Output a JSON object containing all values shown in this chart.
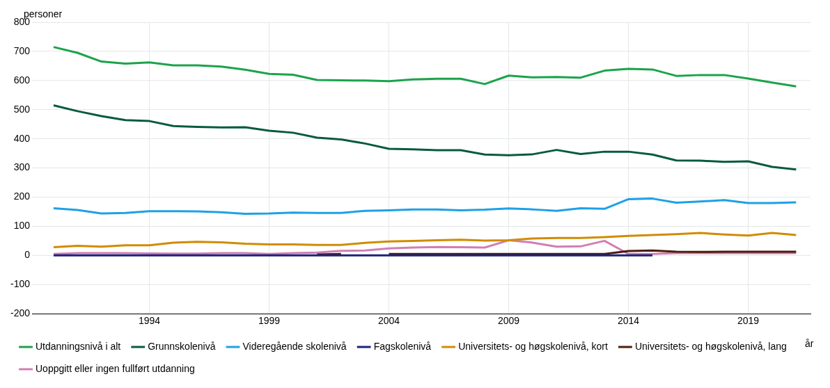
{
  "chart_data": {
    "type": "line",
    "ylabel": "personer",
    "xlabel": "år",
    "x": [
      1990,
      1991,
      1992,
      1993,
      1994,
      1995,
      1996,
      1997,
      1998,
      1999,
      2000,
      2001,
      2002,
      2003,
      2004,
      2005,
      2006,
      2007,
      2008,
      2009,
      2010,
      2011,
      2012,
      2013,
      2014,
      2015,
      2016,
      2017,
      2018,
      2019,
      2020,
      2021
    ],
    "xlim": [
      1989.1,
      2021.6
    ],
    "xticks": [
      1994,
      1999,
      2004,
      2009,
      2014,
      2019
    ],
    "ylim": [
      -200,
      800
    ],
    "yticks": [
      -200,
      -100,
      0,
      100,
      200,
      300,
      400,
      500,
      600,
      700,
      800
    ],
    "grid": true,
    "legend": "bottom",
    "marker": "none",
    "line_style": "solid",
    "series": [
      {
        "name": "Utdanningsnivå i alt",
        "color": "#1ba34b",
        "values": [
          715,
          695,
          665,
          658,
          662,
          652,
          652,
          648,
          637,
          623,
          620,
          602,
          601,
          600,
          598,
          604,
          606,
          606,
          588,
          617,
          611,
          612,
          610,
          634,
          640,
          638,
          616,
          619,
          619,
          607,
          593,
          580
        ]
      },
      {
        "name": "Grunnskolenivå",
        "color": "#075a40",
        "values": [
          515,
          495,
          478,
          464,
          461,
          444,
          441,
          439,
          440,
          428,
          421,
          404,
          398,
          384,
          366,
          364,
          361,
          361,
          346,
          344,
          347,
          362,
          348,
          356,
          356,
          346,
          326,
          325,
          321,
          323,
          304,
          295
        ]
      },
      {
        "name": "Videregående skolenivå",
        "color": "#1ea0e6",
        "values": [
          162,
          156,
          144,
          146,
          152,
          152,
          151,
          148,
          143,
          144,
          147,
          146,
          146,
          153,
          155,
          158,
          158,
          155,
          157,
          161,
          158,
          153,
          162,
          160,
          193,
          195,
          181,
          185,
          190,
          180,
          180,
          182
        ]
      },
      {
        "name": "Fagskolenivå",
        "color": "#1a237e",
        "values": [
          0,
          0,
          0,
          0,
          0,
          0,
          0,
          0,
          0,
          0,
          0,
          0,
          0,
          0,
          0,
          0,
          0,
          0,
          0,
          0,
          0,
          0,
          0,
          0,
          0,
          0,
          null,
          null,
          null,
          null,
          null,
          null
        ]
      },
      {
        "name": "Universitets- og høgskolenivå, kort",
        "color": "#d08c00",
        "values": [
          28,
          33,
          30,
          35,
          35,
          44,
          47,
          45,
          40,
          38,
          38,
          36,
          36,
          43,
          48,
          50,
          52,
          54,
          51,
          52,
          58,
          60,
          60,
          63,
          67,
          70,
          73,
          77,
          72,
          68,
          77,
          70
        ]
      },
      {
        "name": "Universitets- og høgskolenivå, lang",
        "color": "#4a1e0a",
        "values": [
          null,
          null,
          null,
          null,
          null,
          null,
          null,
          null,
          null,
          null,
          null,
          3,
          5,
          null,
          5,
          5,
          5,
          5,
          5,
          5,
          5,
          5,
          5,
          5,
          15,
          17,
          13,
          12,
          13,
          13,
          13,
          13
        ]
      },
      {
        "name": "Uoppgitt eller ingen fullført utdanning",
        "color": "#d07fb4",
        "values": [
          5,
          8,
          8,
          8,
          7,
          6,
          6,
          8,
          8,
          5,
          8,
          10,
          16,
          17,
          24,
          27,
          29,
          28,
          27,
          52,
          44,
          30,
          31,
          50,
          5,
          5,
          8,
          8,
          8,
          8,
          8,
          8
        ]
      }
    ]
  }
}
